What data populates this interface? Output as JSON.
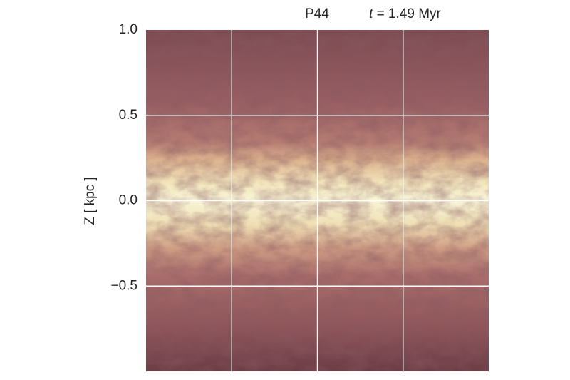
{
  "chart_data": {
    "type": "image",
    "title": "P44",
    "time_label": {
      "symbol": "t",
      "text": "= 1.49 Myr"
    },
    "ylabel": "Z [ kpc ]",
    "ylim": [
      -1.0,
      1.0
    ],
    "yticks": [
      {
        "value": 1.0,
        "label": "1.0"
      },
      {
        "value": 0.5,
        "label": "0.5"
      },
      {
        "value": 0.0,
        "label": "0.0"
      },
      {
        "value": -0.5,
        "label": "−0.5"
      }
    ],
    "xlim": [
      -1.0,
      1.0
    ],
    "xticks": [
      -0.5,
      0,
      0.5
    ],
    "grid": true
  }
}
